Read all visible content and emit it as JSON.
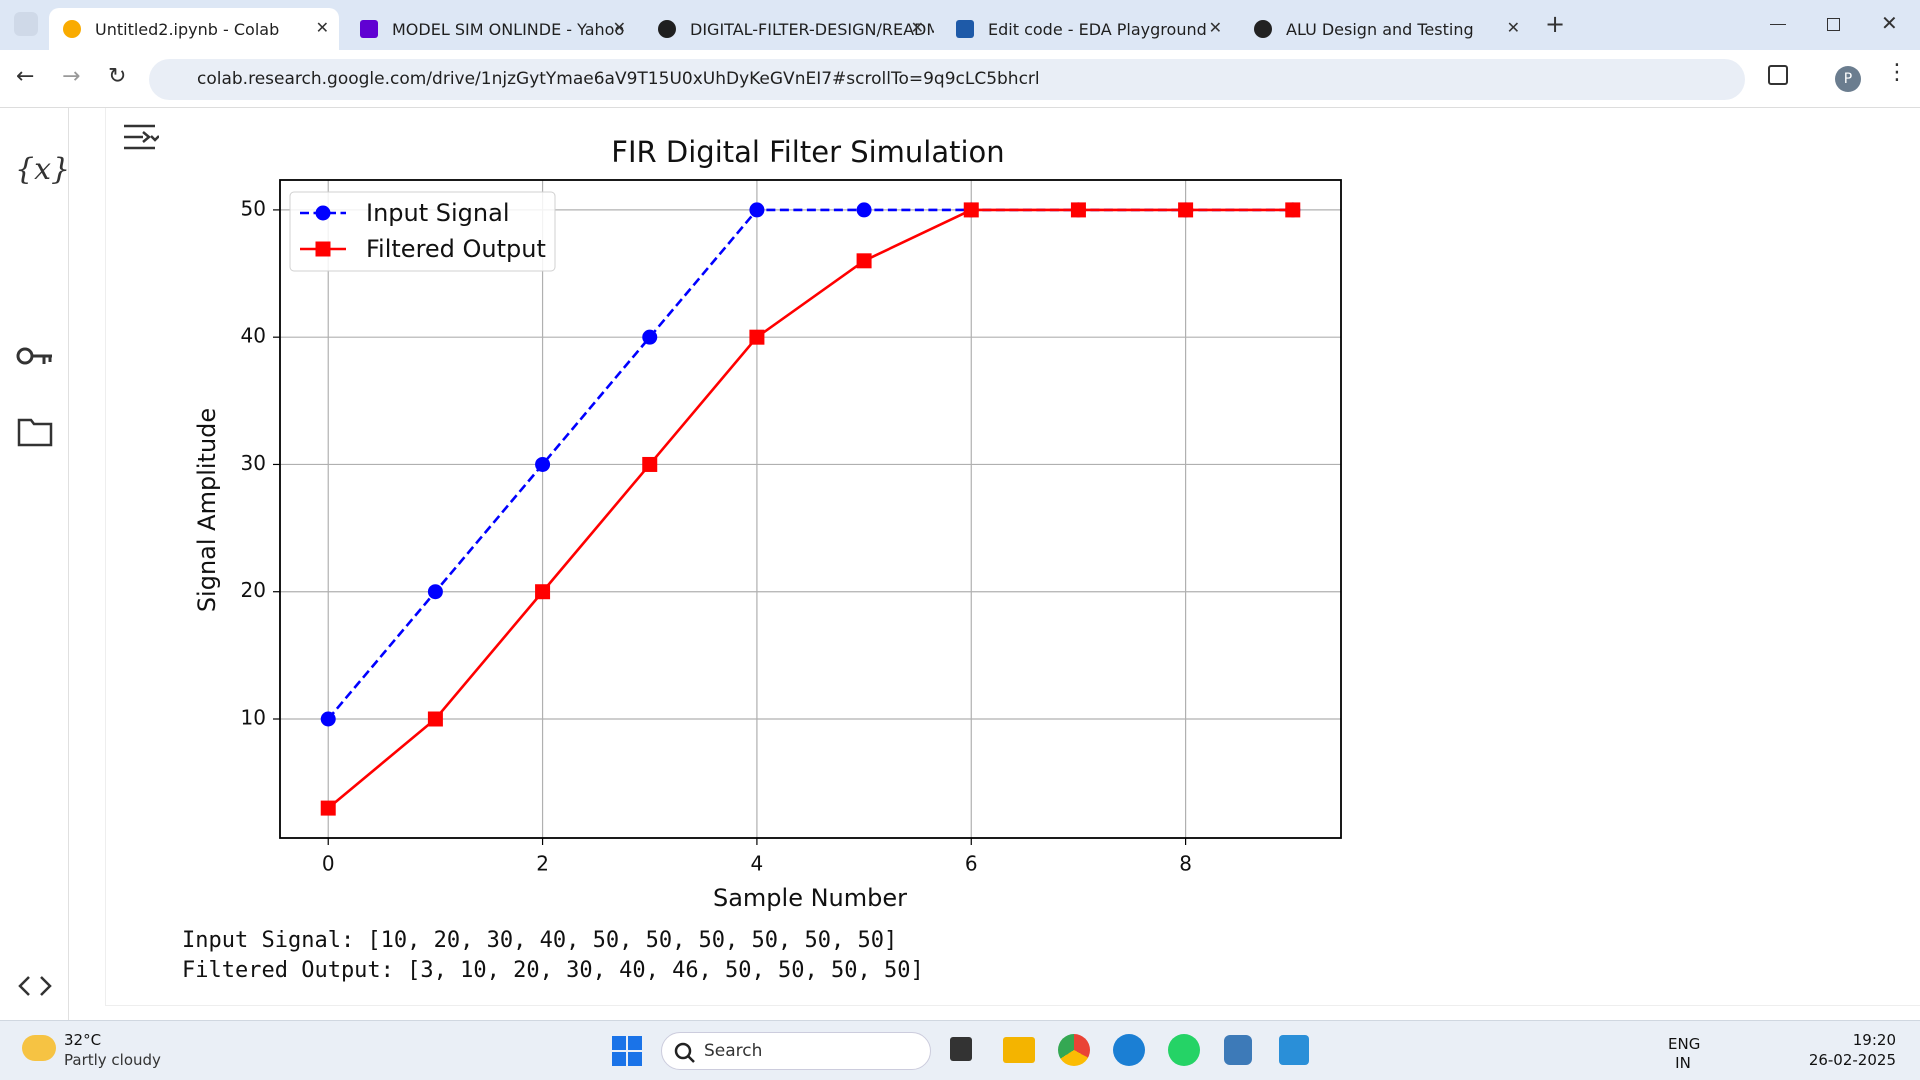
{
  "browser": {
    "tabs": [
      "Untitled2.ipynb - Colab",
      "MODEL SIM ONLINDE - Yahoo",
      "DIGITAL-FILTER-DESIGN/READM",
      "Edit code - EDA Playground",
      "ALU Design and Testing"
    ],
    "url": "colab.research.google.com/drive/1njzGytYmae6aV9T15U0xUhDyKeGVnEI7#scrollTo=9q9cLC5bhcrl",
    "profile": "P"
  },
  "sidebar": {
    "variables": "{x}"
  },
  "chart_data": {
    "type": "line",
    "title": "FIR Digital Filter Simulation",
    "xlabel": "Sample Number",
    "ylabel": "Signal Amplitude",
    "x": [
      0,
      1,
      2,
      3,
      4,
      5,
      6,
      7,
      8,
      9
    ],
    "series": [
      {
        "name": "Input Signal",
        "color": "#0000ff",
        "marker": "circle",
        "linestyle": "dashed",
        "values": [
          10,
          20,
          30,
          40,
          50,
          50,
          50,
          50,
          50,
          50
        ]
      },
      {
        "name": "Filtered Output",
        "color": "#ff0000",
        "marker": "square",
        "linestyle": "solid",
        "values": [
          3,
          10,
          20,
          30,
          40,
          46,
          50,
          50,
          50,
          50
        ]
      }
    ],
    "xlim": [
      -0.45,
      9.45
    ],
    "ylim": [
      0.65,
      52.35
    ],
    "xticks": [
      0,
      2,
      4,
      6,
      8
    ],
    "yticks": [
      10,
      20,
      30,
      40,
      50
    ],
    "grid": true,
    "legend": "upper left"
  },
  "output": [
    "Input Signal: [10, 20, 30, 40, 50, 50, 50, 50, 50, 50]",
    "Filtered Output: [3, 10, 20, 30, 40, 46, 50, 50, 50, 50]"
  ],
  "taskbar": {
    "temperature": "32°C",
    "weather": "Partly cloudy",
    "search": "Search",
    "language": "ENG",
    "region": "IN",
    "time": "19:20",
    "date": "26-02-2025"
  }
}
